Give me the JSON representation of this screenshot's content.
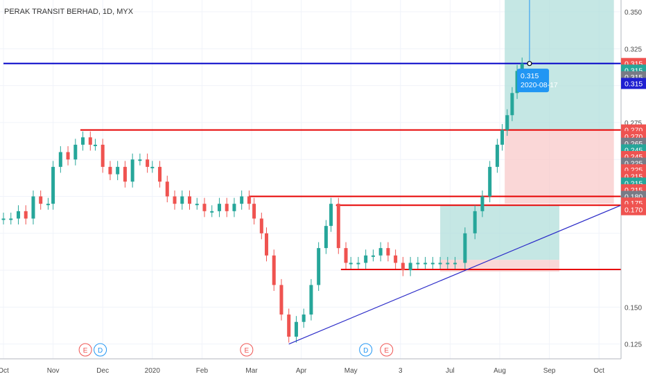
{
  "title": "PERAK TRANSIT BERHAD, 1D, MYX",
  "colors": {
    "up": "#26a69a",
    "down": "#ef5350",
    "level_line": "#e60000",
    "price_line": "#0000c8",
    "trend_line": "#2b2bc8",
    "profit_zone": "#b2dfdb",
    "loss_zone": "#f8c9c9",
    "tooltip_bg": "#2196f3",
    "price_tag_up": "#26a69a",
    "price_tag_down": "#ef5350",
    "price_tag_blue": "#1f1fd1",
    "price_tag_gray": "#787b86"
  },
  "chart_data": {
    "type": "candlestick",
    "ylim": [
      0.115,
      0.358
    ],
    "x_tick_labels": [
      "Oct",
      "Nov",
      "Dec",
      "2020",
      "Feb",
      "Mar",
      "Apr",
      "May",
      "3",
      "Jul",
      "Aug",
      "Sep",
      "Oct"
    ],
    "y_tick_labels": [
      "0.350",
      "0.325",
      "0.275",
      "0.150",
      "0.125"
    ],
    "price_tags": [
      {
        "value": "0.315",
        "color": "down",
        "y": 0.315
      },
      {
        "value": "0.315",
        "color": "up",
        "y": 0.3105
      },
      {
        "value": "0.315",
        "color": "gray",
        "y": 0.306
      },
      {
        "value": "0.315",
        "color": "blue",
        "y": 0.3015
      },
      {
        "value": "0.270",
        "color": "down",
        "y": 0.27
      },
      {
        "value": "0.270",
        "color": "down",
        "y": 0.2655
      },
      {
        "value": "0.265",
        "color": "gray",
        "y": 0.261
      },
      {
        "value": "0.245",
        "color": "up",
        "y": 0.2565
      },
      {
        "value": "0.245",
        "color": "down",
        "y": 0.252
      },
      {
        "value": "0.225",
        "color": "gray",
        "y": 0.2475
      },
      {
        "value": "0.225",
        "color": "down",
        "y": 0.243
      },
      {
        "value": "0.215",
        "color": "down",
        "y": 0.2385
      },
      {
        "value": "0.215",
        "color": "up",
        "y": 0.234
      },
      {
        "value": "0.215",
        "color": "down",
        "y": 0.2295
      },
      {
        "value": "0.180",
        "color": "gray",
        "y": 0.225
      },
      {
        "value": "0.175",
        "color": "down",
        "y": 0.2205
      },
      {
        "value": "0.170",
        "color": "down",
        "y": 0.216
      }
    ],
    "tooltip": {
      "price": "0.315",
      "date": "2020-08-17"
    },
    "event_markers": [
      {
        "label": "E",
        "month": 1.65,
        "kind": "earnings"
      },
      {
        "label": "D",
        "month": 1.95,
        "kind": "dividend"
      },
      {
        "label": "E",
        "month": 4.9,
        "kind": "earnings"
      },
      {
        "label": "D",
        "month": 7.3,
        "kind": "dividend"
      },
      {
        "label": "E",
        "month": 7.72,
        "kind": "earnings"
      }
    ],
    "horizontal_levels": [
      {
        "name": "resistance-0.270",
        "price": 0.27,
        "from_month": 1.55,
        "to_month": 12.6,
        "color": "level"
      },
      {
        "name": "resistance-0.225",
        "price": 0.225,
        "from_month": 4.95,
        "to_month": 12.6,
        "color": "level"
      },
      {
        "name": "resistance-0.220",
        "price": 0.219,
        "from_month": 6.7,
        "to_month": 12.6,
        "color": "level"
      },
      {
        "name": "support-0.175",
        "price": 0.1755,
        "from_month": 6.8,
        "to_month": 12.6,
        "color": "level"
      },
      {
        "name": "price-0.315",
        "price": 0.315,
        "from_month": 0,
        "to_month": 12.6,
        "color": "price"
      }
    ],
    "trend_line": {
      "from": [
        5.75,
        0.125
      ],
      "to": [
        12.6,
        0.219
      ]
    },
    "zones": [
      {
        "type": "profit",
        "from_month": 8.8,
        "to_month": 11.2,
        "top": 0.219,
        "bottom": 0.182
      },
      {
        "type": "loss",
        "from_month": 8.8,
        "to_month": 11.2,
        "top": 0.182,
        "bottom": 0.174
      },
      {
        "type": "profit",
        "from_month": 10.1,
        "to_month": 12.3,
        "top": 0.358,
        "bottom": 0.27
      },
      {
        "type": "loss",
        "from_month": 10.1,
        "to_month": 12.3,
        "top": 0.27,
        "bottom": 0.22
      }
    ],
    "candles": [
      {
        "m": 0.0,
        "c": 0.21
      },
      {
        "m": 0.15,
        "c": 0.21
      },
      {
        "m": 0.3,
        "c": 0.215
      },
      {
        "m": 0.45,
        "c": 0.21
      },
      {
        "m": 0.6,
        "c": 0.225
      },
      {
        "m": 0.75,
        "c": 0.22
      },
      {
        "m": 0.9,
        "c": 0.22
      },
      {
        "m": 1.0,
        "c": 0.245
      },
      {
        "m": 1.15,
        "c": 0.255
      },
      {
        "m": 1.3,
        "c": 0.25
      },
      {
        "m": 1.45,
        "c": 0.26
      },
      {
        "m": 1.6,
        "c": 0.265
      },
      {
        "m": 1.75,
        "c": 0.26
      },
      {
        "m": 1.85,
        "c": 0.26
      },
      {
        "m": 2.0,
        "c": 0.245
      },
      {
        "m": 2.15,
        "c": 0.24
      },
      {
        "m": 2.3,
        "c": 0.245
      },
      {
        "m": 2.45,
        "c": 0.235
      },
      {
        "m": 2.6,
        "c": 0.25
      },
      {
        "m": 2.75,
        "c": 0.25
      },
      {
        "m": 2.9,
        "c": 0.245
      },
      {
        "m": 3.0,
        "c": 0.245
      },
      {
        "m": 3.15,
        "c": 0.235
      },
      {
        "m": 3.3,
        "c": 0.225
      },
      {
        "m": 3.45,
        "c": 0.22
      },
      {
        "m": 3.6,
        "c": 0.225
      },
      {
        "m": 3.75,
        "c": 0.22
      },
      {
        "m": 3.9,
        "c": 0.22
      },
      {
        "m": 4.05,
        "c": 0.215
      },
      {
        "m": 4.2,
        "c": 0.215
      },
      {
        "m": 4.35,
        "c": 0.22
      },
      {
        "m": 4.5,
        "c": 0.215
      },
      {
        "m": 4.65,
        "c": 0.22
      },
      {
        "m": 4.8,
        "c": 0.225
      },
      {
        "m": 4.95,
        "c": 0.22
      },
      {
        "m": 5.05,
        "c": 0.21
      },
      {
        "m": 5.2,
        "c": 0.2
      },
      {
        "m": 5.3,
        "c": 0.185
      },
      {
        "m": 5.45,
        "c": 0.165
      },
      {
        "m": 5.6,
        "c": 0.145
      },
      {
        "m": 5.75,
        "c": 0.13
      },
      {
        "m": 5.9,
        "c": 0.14
      },
      {
        "m": 6.05,
        "c": 0.145
      },
      {
        "m": 6.2,
        "c": 0.165
      },
      {
        "m": 6.35,
        "c": 0.19
      },
      {
        "m": 6.5,
        "c": 0.205
      },
      {
        "m": 6.6,
        "c": 0.22
      },
      {
        "m": 6.75,
        "c": 0.19
      },
      {
        "m": 6.9,
        "c": 0.18
      },
      {
        "m": 7.0,
        "c": 0.18
      },
      {
        "m": 7.15,
        "c": 0.18
      },
      {
        "m": 7.3,
        "c": 0.185
      },
      {
        "m": 7.45,
        "c": 0.185
      },
      {
        "m": 7.6,
        "c": 0.19
      },
      {
        "m": 7.75,
        "c": 0.185
      },
      {
        "m": 7.9,
        "c": 0.18
      },
      {
        "m": 8.05,
        "c": 0.175
      },
      {
        "m": 8.2,
        "c": 0.18
      },
      {
        "m": 8.35,
        "c": 0.18
      },
      {
        "m": 8.5,
        "c": 0.18
      },
      {
        "m": 8.65,
        "c": 0.18
      },
      {
        "m": 8.8,
        "c": 0.18
      },
      {
        "m": 8.95,
        "c": 0.18
      },
      {
        "m": 9.1,
        "c": 0.18
      },
      {
        "m": 9.3,
        "c": 0.2
      },
      {
        "m": 9.5,
        "c": 0.215
      },
      {
        "m": 9.65,
        "c": 0.225
      },
      {
        "m": 9.8,
        "c": 0.245
      },
      {
        "m": 9.95,
        "c": 0.26
      },
      {
        "m": 10.05,
        "c": 0.27
      },
      {
        "m": 10.15,
        "c": 0.28
      },
      {
        "m": 10.25,
        "c": 0.295
      },
      {
        "m": 10.35,
        "c": 0.31
      },
      {
        "m": 10.45,
        "c": 0.315
      }
    ]
  }
}
